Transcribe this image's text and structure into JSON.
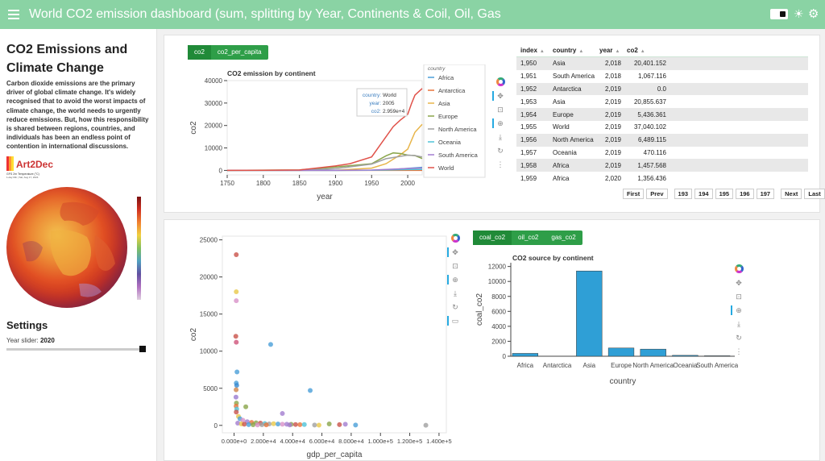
{
  "app": {
    "title": "World CO2 emission dashboard (sum, splitting by Year, Continents & Coil, Oil, Gas"
  },
  "sidebar": {
    "heading": "CO2 Emissions and Climate Change",
    "intro": "Carbon dioxide emissions are the primary driver of global climate change. It's widely recognised that to avoid the worst impacts of climate change, the world needs to urgently reduce emissions. But, how this responsibility is shared between regions, countries, and individuals has been an endless point of contention in international discussions.",
    "logo_text": "Art2Dec",
    "map_caption": "GFS 2m Temperature (°C)",
    "map_date": "1-day Min | Sat, Aug 17, 2024",
    "settings_heading": "Settings",
    "slider_label": "Year slider:",
    "slider_value": "2020",
    "slider_fraction": 1.0
  },
  "top_tabs": [
    "co2",
    "co2_per_capita"
  ],
  "bottom_tabs": [
    "coal_co2",
    "oil_co2",
    "gas_co2"
  ],
  "table": {
    "columns": [
      "index",
      "country",
      "year",
      "co2"
    ],
    "rows": [
      [
        "1,950",
        "Asia",
        "2,018",
        "20,401.152"
      ],
      [
        "1,951",
        "South America",
        "2,018",
        "1,067.116"
      ],
      [
        "1,952",
        "Antarctica",
        "2,019",
        "0.0"
      ],
      [
        "1,953",
        "Asia",
        "2,019",
        "20,855.637"
      ],
      [
        "1,954",
        "Europe",
        "2,019",
        "5,436.361"
      ],
      [
        "1,955",
        "World",
        "2,019",
        "37,040.102"
      ],
      [
        "1,956",
        "North America",
        "2,019",
        "6,489.115"
      ],
      [
        "1,957",
        "Oceania",
        "2,019",
        "470.116"
      ],
      [
        "1,958",
        "Africa",
        "2,019",
        "1,457.568"
      ],
      [
        "1,959",
        "Africa",
        "2,020",
        "1,356.436"
      ]
    ],
    "pager": [
      "First",
      "Prev",
      "193",
      "194",
      "195",
      "196",
      "197",
      "Next",
      "Last"
    ]
  },
  "chart_data": [
    {
      "type": "line",
      "title": "CO2 emission by continent",
      "xlabel": "year",
      "ylabel": "co2",
      "xlim": [
        1750,
        2020
      ],
      "ylim": [
        -2000,
        40000
      ],
      "x_ticks": [
        1750,
        1800,
        1850,
        1900,
        1950,
        2000
      ],
      "y_ticks": [
        0,
        10000,
        20000,
        30000,
        40000
      ],
      "legend_title": "country",
      "legend_position": "right",
      "tooltip": {
        "country": "World",
        "year": "2005",
        "co2": "2.959e+4"
      },
      "series": [
        {
          "name": "Africa",
          "color": "#4a9fd8",
          "points": [
            [
              1750,
              0
            ],
            [
              1900,
              10
            ],
            [
              1950,
              100
            ],
            [
              1980,
              400
            ],
            [
              2000,
              900
            ],
            [
              2020,
              1360
            ]
          ]
        },
        {
          "name": "Antarctica",
          "color": "#e9743b",
          "points": [
            [
              1750,
              0
            ],
            [
              2020,
              0
            ]
          ]
        },
        {
          "name": "Asia",
          "color": "#e8b54a",
          "points": [
            [
              1750,
              0
            ],
            [
              1900,
              100
            ],
            [
              1950,
              1000
            ],
            [
              1970,
              3000
            ],
            [
              1990,
              7000
            ],
            [
              2000,
              9500
            ],
            [
              2010,
              17000
            ],
            [
              2020,
              20500
            ]
          ]
        },
        {
          "name": "Europe",
          "color": "#8aa54a",
          "points": [
            [
              1750,
              10
            ],
            [
              1850,
              200
            ],
            [
              1900,
              1500
            ],
            [
              1950,
              3000
            ],
            [
              1970,
              6500
            ],
            [
              1980,
              7800
            ],
            [
              1990,
              7500
            ],
            [
              2000,
              6800
            ],
            [
              2010,
              6600
            ],
            [
              2020,
              5300
            ]
          ]
        },
        {
          "name": "North America",
          "color": "#a0a0a0",
          "points": [
            [
              1750,
              0
            ],
            [
              1850,
              50
            ],
            [
              1900,
              800
            ],
            [
              1950,
              2800
            ],
            [
              1970,
              5200
            ],
            [
              2000,
              6800
            ],
            [
              2010,
              6600
            ],
            [
              2020,
              6000
            ]
          ]
        },
        {
          "name": "Oceania",
          "color": "#4fc3d8",
          "points": [
            [
              1750,
              0
            ],
            [
              1900,
              10
            ],
            [
              1950,
              70
            ],
            [
              2000,
              380
            ],
            [
              2020,
              440
            ]
          ]
        },
        {
          "name": "South America",
          "color": "#a37dd0",
          "points": [
            [
              1750,
              0
            ],
            [
              1900,
              20
            ],
            [
              1950,
              150
            ],
            [
              2000,
              850
            ],
            [
              2020,
              1060
            ]
          ]
        },
        {
          "name": "World",
          "color": "#e0524a",
          "points": [
            [
              1750,
              10
            ],
            [
              1800,
              30
            ],
            [
              1850,
              200
            ],
            [
              1900,
              2000
            ],
            [
              1920,
              3000
            ],
            [
              1950,
              6000
            ],
            [
              1970,
              15000
            ],
            [
              1980,
              19500
            ],
            [
              1990,
              22500
            ],
            [
              2000,
              25000
            ],
            [
              2005,
              29590
            ],
            [
              2010,
              33500
            ],
            [
              2020,
              36500
            ]
          ]
        }
      ]
    },
    {
      "type": "scatter",
      "xlabel": "gdp_per_capita",
      "ylabel": "co2",
      "xlim": [
        -8000,
        145000
      ],
      "ylim": [
        -1000,
        25500
      ],
      "x_ticks": [
        "0.000e+0",
        "2.000e+4",
        "4.000e+4",
        "6.000e+4",
        "8.000e+4",
        "1.000e+5",
        "1.200e+5",
        "1.400e+5"
      ],
      "y_ticks": [
        0,
        5000,
        10000,
        15000,
        20000,
        25000
      ],
      "points": [
        [
          1500,
          23000,
          "#c9524a"
        ],
        [
          1500,
          18000,
          "#e8c84a"
        ],
        [
          1500,
          16800,
          "#d891c8"
        ],
        [
          1200,
          12000,
          "#c9524a"
        ],
        [
          1500,
          11200,
          "#d0547a"
        ],
        [
          2000,
          7200,
          "#4a9fd8"
        ],
        [
          1500,
          5700,
          "#4a9fd8"
        ],
        [
          1800,
          5400,
          "#3a8ad0"
        ],
        [
          1400,
          4800,
          "#d0844a"
        ],
        [
          1300,
          3800,
          "#9a7ad0"
        ],
        [
          1600,
          3000,
          "#8aa54a"
        ],
        [
          1400,
          2600,
          "#e9743b"
        ],
        [
          1800,
          2200,
          "#4fc3d8"
        ],
        [
          1500,
          1800,
          "#c9524a"
        ],
        [
          8000,
          2500,
          "#8aa54a"
        ],
        [
          25000,
          10900,
          "#4a9fd8"
        ],
        [
          52000,
          4700,
          "#4a9fd8"
        ],
        [
          33000,
          1600,
          "#a37dd0"
        ],
        [
          3000,
          1200,
          "#e8c84a"
        ],
        [
          4000,
          900,
          "#4a9fd8"
        ],
        [
          6000,
          700,
          "#d891c8"
        ],
        [
          9000,
          500,
          "#a37dd0"
        ],
        [
          12000,
          400,
          "#e9743b"
        ],
        [
          15000,
          350,
          "#8aa54a"
        ],
        [
          18000,
          300,
          "#c9524a"
        ],
        [
          21000,
          250,
          "#4fc3d8"
        ],
        [
          24000,
          200,
          "#a0a0a0"
        ],
        [
          27000,
          220,
          "#e8c84a"
        ],
        [
          30000,
          180,
          "#4a9fd8"
        ],
        [
          33000,
          150,
          "#d891c8"
        ],
        [
          36000,
          160,
          "#a37dd0"
        ],
        [
          39000,
          140,
          "#8aa54a"
        ],
        [
          42000,
          120,
          "#c9524a"
        ],
        [
          45000,
          100,
          "#e9743b"
        ],
        [
          48000,
          110,
          "#4fc3d8"
        ],
        [
          2500,
          300,
          "#a37dd0"
        ],
        [
          5000,
          200,
          "#e8c84a"
        ],
        [
          7000,
          150,
          "#c9524a"
        ],
        [
          10000,
          100,
          "#4a9fd8"
        ],
        [
          13000,
          80,
          "#8aa54a"
        ],
        [
          16000,
          60,
          "#d891c8"
        ],
        [
          19000,
          90,
          "#a0a0a0"
        ],
        [
          22000,
          70,
          "#e9743b"
        ],
        [
          38000,
          60,
          "#a37dd0"
        ],
        [
          55000,
          40,
          "#a0a0a0"
        ],
        [
          58000,
          30,
          "#e8c84a"
        ],
        [
          65000,
          200,
          "#8aa54a"
        ],
        [
          72000,
          100,
          "#c9524a"
        ],
        [
          76000,
          150,
          "#a37dd0"
        ],
        [
          83000,
          50,
          "#4a9fd8"
        ],
        [
          131000,
          20,
          "#a0a0a0"
        ]
      ]
    },
    {
      "type": "bar",
      "title": "CO2 source by continent",
      "xlabel": "country",
      "ylabel": "coal_co2",
      "categories": [
        "Africa",
        "Antarctica",
        "Asia",
        "Europe",
        "North America",
        "Oceania",
        "South America"
      ],
      "values": [
        380,
        0,
        11400,
        1100,
        950,
        120,
        60
      ],
      "ylim": [
        0,
        12500
      ],
      "y_ticks": [
        0,
        2000,
        4000,
        6000,
        8000,
        10000,
        12000
      ],
      "color": "#2f9fd6"
    }
  ]
}
